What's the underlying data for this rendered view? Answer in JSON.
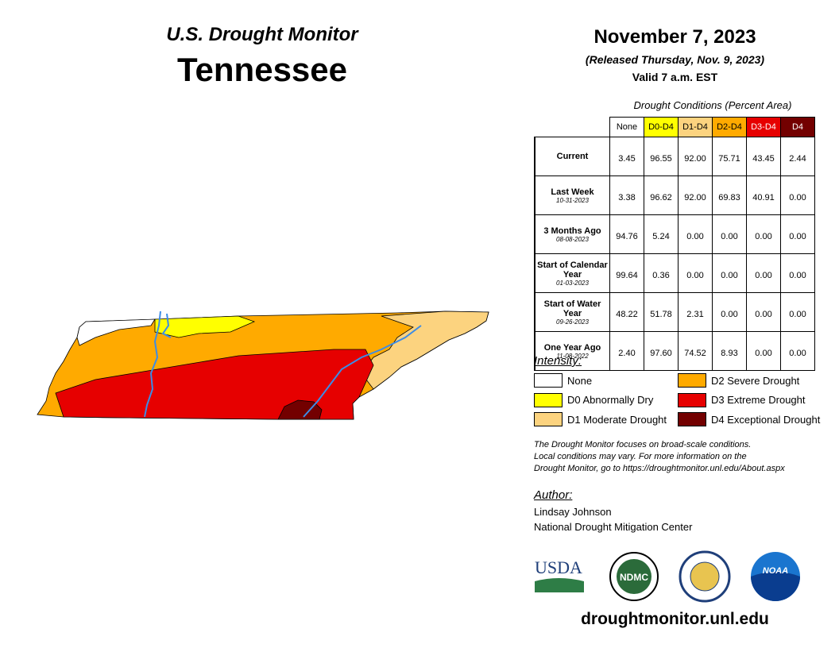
{
  "header": {
    "title": "U.S. Drought Monitor",
    "state": "Tennessee",
    "date": "November 7, 2023",
    "released": "(Released Thursday, Nov. 9, 2023)",
    "valid": "Valid 7 a.m. EST"
  },
  "table": {
    "caption": "Drought Conditions (Percent Area)",
    "columns": [
      "None",
      "D0-D4",
      "D1-D4",
      "D2-D4",
      "D3-D4",
      "D4"
    ],
    "rows": [
      {
        "label": "Current",
        "values": [
          "3.45",
          "96.55",
          "92.00",
          "75.71",
          "43.45",
          "2.44"
        ]
      },
      {
        "label": "Last Week",
        "date": "10-31-2023",
        "values": [
          "3.38",
          "96.62",
          "92.00",
          "69.83",
          "40.91",
          "0.00"
        ]
      },
      {
        "label": "3 Months Ago",
        "date": "08-08-2023",
        "values": [
          "94.76",
          "5.24",
          "0.00",
          "0.00",
          "0.00",
          "0.00"
        ]
      },
      {
        "label": "Start of Calendar Year",
        "date": "01-03-2023",
        "values": [
          "99.64",
          "0.36",
          "0.00",
          "0.00",
          "0.00",
          "0.00"
        ]
      },
      {
        "label": "Start of Water Year",
        "date": "09-26-2023",
        "values": [
          "48.22",
          "51.78",
          "2.31",
          "0.00",
          "0.00",
          "0.00"
        ]
      },
      {
        "label": "One Year Ago",
        "date": "11-08-2022",
        "values": [
          "2.40",
          "97.60",
          "74.52",
          "8.93",
          "0.00",
          "0.00"
        ]
      }
    ]
  },
  "legend": {
    "title": "Intensity:",
    "items": [
      {
        "label": "None",
        "color": "#ffffff"
      },
      {
        "label": "D0 Abnormally Dry",
        "color": "#ffff00"
      },
      {
        "label": "D1 Moderate Drought",
        "color": "#fcd37f"
      },
      {
        "label": "D2 Severe Drought",
        "color": "#ffaa00"
      },
      {
        "label": "D3 Extreme Drought",
        "color": "#e60000"
      },
      {
        "label": "D4 Exceptional Drought",
        "color": "#730000"
      }
    ]
  },
  "note": [
    "The Drought Monitor focuses on broad-scale conditions.",
    "Local conditions may vary. For more information on the",
    "Drought Monitor, go to https://droughtmonitor.unl.edu/About.aspx"
  ],
  "author": {
    "title": "Author:",
    "name": "Lindsay Johnson",
    "org": "National Drought Mitigation Center"
  },
  "logos": [
    "USDA",
    "NDMC",
    "NOAA"
  ],
  "url": "droughtmonitor.unl.edu"
}
